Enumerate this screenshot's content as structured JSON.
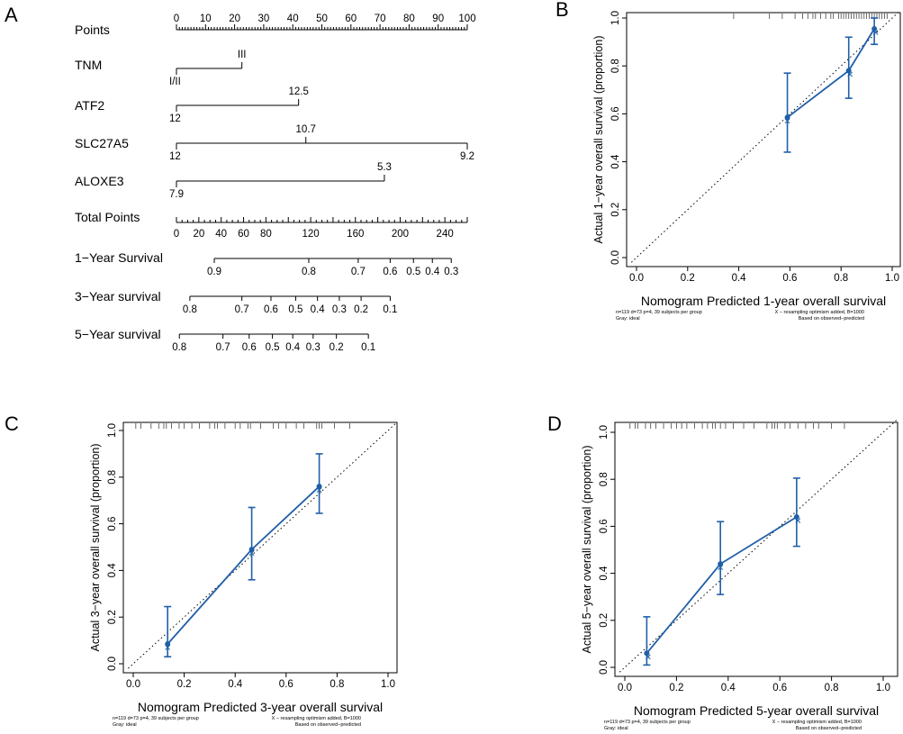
{
  "chart_data": [
    {
      "type": "nomogram",
      "panel_label": "A",
      "points_scale": {
        "label": "Points",
        "ticks": [
          "0",
          "10",
          "20",
          "30",
          "40",
          "50",
          "60",
          "70",
          "80",
          "90",
          "100"
        ],
        "range": [
          0,
          100
        ]
      },
      "variables": [
        {
          "name": "TNM",
          "ticks": [
            {
              "value": 0,
              "label": "I/II"
            },
            {
              "value": 22.5,
              "label": "III"
            }
          ]
        },
        {
          "name": "ATF2",
          "ticks": [
            {
              "value": 0,
              "label": "12"
            },
            {
              "value": 42,
              "label": "12.5"
            }
          ]
        },
        {
          "name": "SLC27A5",
          "ticks": [
            {
              "value": 0,
              "label": "12"
            },
            {
              "value": 44.5,
              "label": "10.7"
            },
            {
              "value": 100,
              "label": "9.2"
            }
          ]
        },
        {
          "name": "ALOXE3",
          "ticks": [
            {
              "value": 0,
              "label": "7.9"
            },
            {
              "value": 71.5,
              "label": "5.3"
            }
          ]
        }
      ],
      "total_points": {
        "label": "Total Points",
        "ticks": [
          "0",
          "20",
          "40",
          "60",
          "80",
          "120",
          "160",
          "200",
          "240"
        ],
        "range": [
          0,
          260
        ]
      },
      "survival_scales": [
        {
          "label": "1−Year Survival",
          "ticks": [
            {
              "total": 33.8,
              "label": "0.9"
            },
            {
              "total": 118.3,
              "label": "0.8"
            },
            {
              "total": 162.5,
              "label": "0.7"
            },
            {
              "total": 191.1,
              "label": "0.6"
            },
            {
              "total": 211.9,
              "label": "0.5"
            },
            {
              "total": 228.8,
              "label": "0.4"
            },
            {
              "total": 245.7,
              "label": "0.3"
            }
          ]
        },
        {
          "label": "3−Year survival",
          "ticks": [
            {
              "total": 12.0,
              "label": "0.8"
            },
            {
              "total": 58.5,
              "label": "0.7"
            },
            {
              "total": 84.5,
              "label": "0.6"
            },
            {
              "total": 106.6,
              "label": "0.5"
            },
            {
              "total": 126.1,
              "label": "0.4"
            },
            {
              "total": 145.6,
              "label": "0.3"
            },
            {
              "total": 165.1,
              "label": "0.2"
            },
            {
              "total": 191.1,
              "label": "0.1"
            }
          ]
        },
        {
          "label": "5−Year survival",
          "ticks": [
            {
              "total": 2.6,
              "label": "0.8"
            },
            {
              "total": 41.6,
              "label": "0.7"
            },
            {
              "total": 65.0,
              "label": "0.6"
            },
            {
              "total": 85.8,
              "label": "0.5"
            },
            {
              "total": 104.0,
              "label": "0.4"
            },
            {
              "total": 122.2,
              "label": "0.3"
            },
            {
              "total": 143.0,
              "label": "0.2"
            },
            {
              "total": 171.6,
              "label": "0.1"
            }
          ]
        }
      ]
    },
    {
      "type": "calibration",
      "panel_label": "B",
      "xlabel": "Nomogram Predicted 1-year overall survival",
      "ylabel": "Actual 1−year overall survival (proportion)",
      "xlim": [
        0,
        1
      ],
      "ylim": [
        0,
        1
      ],
      "ticks": [
        "0.0",
        "0.2",
        "0.4",
        "0.6",
        "0.8",
        "1.0"
      ],
      "points": [
        {
          "x": 0.59,
          "y": 0.585,
          "lo": 0.44,
          "hi": 0.77,
          "xc": 0.59
        },
        {
          "x": 0.83,
          "y": 0.78,
          "lo": 0.665,
          "hi": 0.92,
          "xc": 0.835
        },
        {
          "x": 0.93,
          "y": 0.955,
          "lo": 0.89,
          "hi": 1.0,
          "xc": 0.935
        }
      ],
      "rug": [
        0.38,
        0.52,
        0.57,
        0.62,
        0.65,
        0.67,
        0.69,
        0.7,
        0.72,
        0.74,
        0.76,
        0.77,
        0.79,
        0.8,
        0.81,
        0.82,
        0.83,
        0.84,
        0.85,
        0.86,
        0.87,
        0.88,
        0.89,
        0.9,
        0.91,
        0.92,
        0.93,
        0.94,
        0.95,
        0.96,
        0.97,
        0.98
      ],
      "footer_left": [
        "n=119 d=73 p=4, 39 subjects per group",
        "Gray: ideal"
      ],
      "footer_right": [
        "X − resampling optimism added, B=1000",
        "Based on observed−predicted"
      ]
    },
    {
      "type": "calibration",
      "panel_label": "C",
      "xlabel": "Nomogram Predicted 3-year overall survival",
      "ylabel": "Actual 3−year overall survival (proportion)",
      "xlim": [
        0,
        1
      ],
      "ylim": [
        0,
        1
      ],
      "ticks": [
        "0.0",
        "0.2",
        "0.4",
        "0.6",
        "0.8",
        "1.0"
      ],
      "points": [
        {
          "x": 0.135,
          "y": 0.085,
          "lo": 0.03,
          "hi": 0.245,
          "xc": 0.135
        },
        {
          "x": 0.465,
          "y": 0.49,
          "lo": 0.36,
          "hi": 0.67,
          "xc": 0.465
        },
        {
          "x": 0.73,
          "y": 0.76,
          "lo": 0.645,
          "hi": 0.9,
          "xc": 0.73
        }
      ],
      "rug": [
        0.01,
        0.03,
        0.07,
        0.1,
        0.12,
        0.13,
        0.15,
        0.18,
        0.2,
        0.23,
        0.26,
        0.3,
        0.32,
        0.33,
        0.36,
        0.4,
        0.42,
        0.45,
        0.46,
        0.5,
        0.55,
        0.57,
        0.6,
        0.64,
        0.67,
        0.72,
        0.73,
        0.74,
        0.79,
        0.85
      ],
      "footer_left": [
        "n=119 d=73 p=4, 39 subjects per group",
        "Gray: ideal"
      ],
      "footer_right": [
        "X − resampling optimism added, B=1000",
        "Based on observed−predicted"
      ]
    },
    {
      "type": "calibration",
      "panel_label": "D",
      "xlabel": "Nomogram Predicted 5-year overall survival",
      "ylabel": "Actual 5−year overall survival (proportion)",
      "xlim": [
        0,
        1
      ],
      "ylim": [
        0,
        1
      ],
      "ticks": [
        "0.0",
        "0.2",
        "0.4",
        "0.6",
        "0.8",
        "1.0"
      ],
      "points": [
        {
          "x": 0.085,
          "y": 0.06,
          "lo": 0.01,
          "hi": 0.215,
          "xc": 0.09
        },
        {
          "x": 0.37,
          "y": 0.44,
          "lo": 0.31,
          "hi": 0.62,
          "xc": 0.37
        },
        {
          "x": 0.665,
          "y": 0.64,
          "lo": 0.515,
          "hi": 0.805,
          "xc": 0.67
        }
      ],
      "rug": [
        0.02,
        0.04,
        0.05,
        0.08,
        0.1,
        0.12,
        0.15,
        0.18,
        0.2,
        0.22,
        0.24,
        0.27,
        0.3,
        0.32,
        0.34,
        0.35,
        0.37,
        0.39,
        0.42,
        0.46,
        0.5,
        0.55,
        0.57,
        0.58,
        0.59,
        0.62,
        0.64,
        0.67,
        0.7,
        0.73,
        0.75,
        0.8,
        0.85
      ],
      "footer_left": [
        "n=119 d=73 p=4, 39 subjects per group",
        "Gray: ideal"
      ],
      "footer_right": [
        "X − resampling optimism added, B=1000",
        "Based on observed−predicted"
      ]
    }
  ],
  "colors": {
    "series": "#1f5fa8",
    "axis": "#000000",
    "ideal": "#000000",
    "rug": "#444444"
  }
}
